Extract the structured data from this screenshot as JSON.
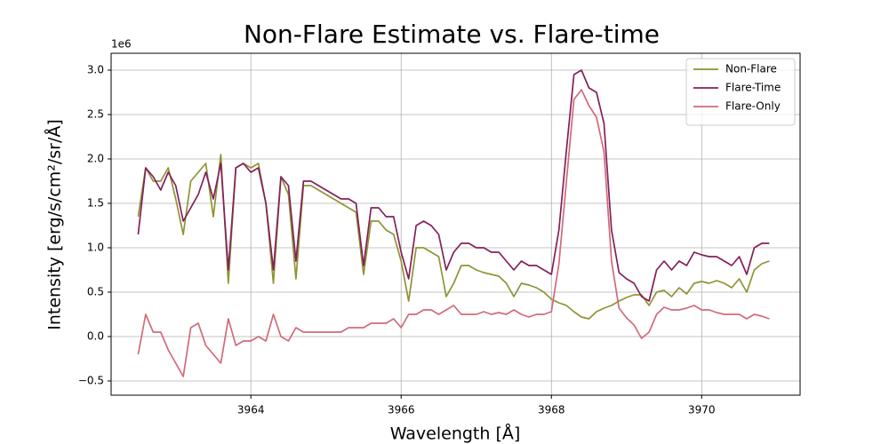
{
  "chart_data": {
    "type": "line",
    "title": "Non-Flare Estimate vs. Flare-time",
    "x_label": "Wavelength [Å]",
    "y_label": "Intensity [erg/s/cm²/sr/Å]",
    "y_offset_label": "1e6",
    "x": [
      3962.5,
      3962.6,
      3962.7,
      3962.8,
      3962.9,
      3963.0,
      3963.1,
      3963.2,
      3963.3,
      3963.4,
      3963.5,
      3963.6,
      3963.7,
      3963.8,
      3963.9,
      3964.0,
      3964.1,
      3964.2,
      3964.3,
      3964.4,
      3964.5,
      3964.6,
      3964.7,
      3964.8,
      3964.9,
      3965.0,
      3965.1,
      3965.2,
      3965.3,
      3965.4,
      3965.5,
      3965.6,
      3965.7,
      3965.8,
      3965.9,
      3966.0,
      3966.1,
      3966.2,
      3966.3,
      3966.4,
      3966.5,
      3966.6,
      3966.7,
      3966.8,
      3966.9,
      3967.0,
      3967.1,
      3967.2,
      3967.3,
      3967.4,
      3967.5,
      3967.6,
      3967.7,
      3967.8,
      3967.9,
      3968.0,
      3968.1,
      3968.2,
      3968.3,
      3968.4,
      3968.5,
      3968.6,
      3968.7,
      3968.8,
      3968.9,
      3969.0,
      3969.1,
      3969.2,
      3969.3,
      3969.4,
      3969.5,
      3969.6,
      3969.7,
      3969.8,
      3969.9,
      3970.0,
      3970.1,
      3970.2,
      3970.3,
      3970.4,
      3970.5,
      3970.6,
      3970.7,
      3970.8,
      3970.9
    ],
    "series": [
      {
        "name": "Non-Flare",
        "color": "#8f9434",
        "values": [
          1.35,
          1.9,
          1.75,
          1.75,
          1.9,
          1.55,
          1.15,
          1.75,
          1.85,
          1.95,
          1.35,
          2.05,
          0.6,
          1.9,
          1.95,
          1.9,
          1.95,
          1.5,
          0.6,
          1.8,
          1.6,
          0.65,
          1.7,
          1.7,
          1.65,
          1.6,
          1.55,
          1.5,
          1.45,
          1.4,
          0.7,
          1.3,
          1.3,
          1.2,
          1.15,
          0.85,
          0.4,
          1.0,
          1.0,
          0.95,
          0.9,
          0.45,
          0.6,
          0.8,
          0.8,
          0.75,
          0.72,
          0.7,
          0.68,
          0.6,
          0.45,
          0.6,
          0.58,
          0.55,
          0.5,
          0.42,
          0.38,
          0.35,
          0.28,
          0.22,
          0.2,
          0.28,
          0.32,
          0.35,
          0.4,
          0.44,
          0.47,
          0.47,
          0.35,
          0.5,
          0.52,
          0.45,
          0.55,
          0.48,
          0.6,
          0.62,
          0.6,
          0.63,
          0.6,
          0.55,
          0.65,
          0.5,
          0.75,
          0.82,
          0.85
        ]
      },
      {
        "name": "Flare-Time",
        "color": "#84205a",
        "values": [
          1.15,
          1.9,
          1.8,
          1.65,
          1.85,
          1.7,
          1.3,
          1.45,
          1.6,
          1.85,
          1.55,
          1.95,
          0.75,
          1.9,
          1.95,
          1.85,
          1.9,
          1.5,
          0.75,
          1.8,
          1.7,
          0.85,
          1.75,
          1.75,
          1.7,
          1.65,
          1.6,
          1.55,
          1.55,
          1.5,
          0.8,
          1.45,
          1.45,
          1.35,
          1.35,
          0.95,
          0.65,
          1.25,
          1.3,
          1.25,
          1.15,
          0.75,
          0.95,
          1.05,
          1.05,
          1.0,
          1.0,
          0.95,
          0.95,
          0.85,
          0.75,
          0.85,
          0.8,
          0.8,
          0.75,
          0.7,
          1.2,
          2.1,
          2.95,
          3.0,
          2.8,
          2.75,
          2.4,
          1.2,
          0.72,
          0.65,
          0.6,
          0.45,
          0.4,
          0.75,
          0.85,
          0.75,
          0.85,
          0.8,
          0.95,
          0.92,
          0.9,
          0.9,
          0.85,
          0.8,
          0.9,
          0.7,
          1.0,
          1.05,
          1.05
        ]
      },
      {
        "name": "Flare-Only",
        "color": "#d06b7a",
        "values": [
          -0.2,
          0.25,
          0.05,
          0.05,
          -0.15,
          -0.3,
          -0.45,
          0.1,
          0.15,
          -0.1,
          -0.2,
          -0.3,
          0.2,
          -0.1,
          -0.05,
          -0.05,
          0.0,
          -0.05,
          0.25,
          0.0,
          -0.05,
          0.1,
          0.05,
          0.05,
          0.05,
          0.05,
          0.05,
          0.05,
          0.1,
          0.1,
          0.1,
          0.15,
          0.15,
          0.15,
          0.2,
          0.1,
          0.25,
          0.25,
          0.3,
          0.3,
          0.25,
          0.3,
          0.35,
          0.25,
          0.25,
          0.25,
          0.28,
          0.25,
          0.27,
          0.25,
          0.3,
          0.25,
          0.22,
          0.25,
          0.25,
          0.28,
          0.82,
          1.75,
          2.67,
          2.78,
          2.6,
          2.47,
          2.08,
          0.85,
          0.32,
          0.21,
          0.13,
          -0.02,
          0.05,
          0.25,
          0.33,
          0.3,
          0.3,
          0.32,
          0.35,
          0.3,
          0.3,
          0.27,
          0.25,
          0.25,
          0.25,
          0.2,
          0.25,
          0.23,
          0.2
        ]
      }
    ],
    "xlim": [
      3962.14,
      3971.31
    ],
    "ylim": [
      -0.66,
      3.19
    ],
    "xticks": [
      3964,
      3966,
      3968,
      3970
    ],
    "yticks": [
      {
        "value": -0.5,
        "label": "−0.5"
      },
      {
        "value": 0,
        "label": "0.0"
      },
      0.5,
      {
        "value": 1,
        "label": "1.0"
      },
      1.5,
      {
        "value": 2,
        "label": "2.0"
      },
      2.5,
      {
        "value": 3,
        "label": "3.0"
      }
    ],
    "grid": true,
    "legend": "upper right"
  }
}
